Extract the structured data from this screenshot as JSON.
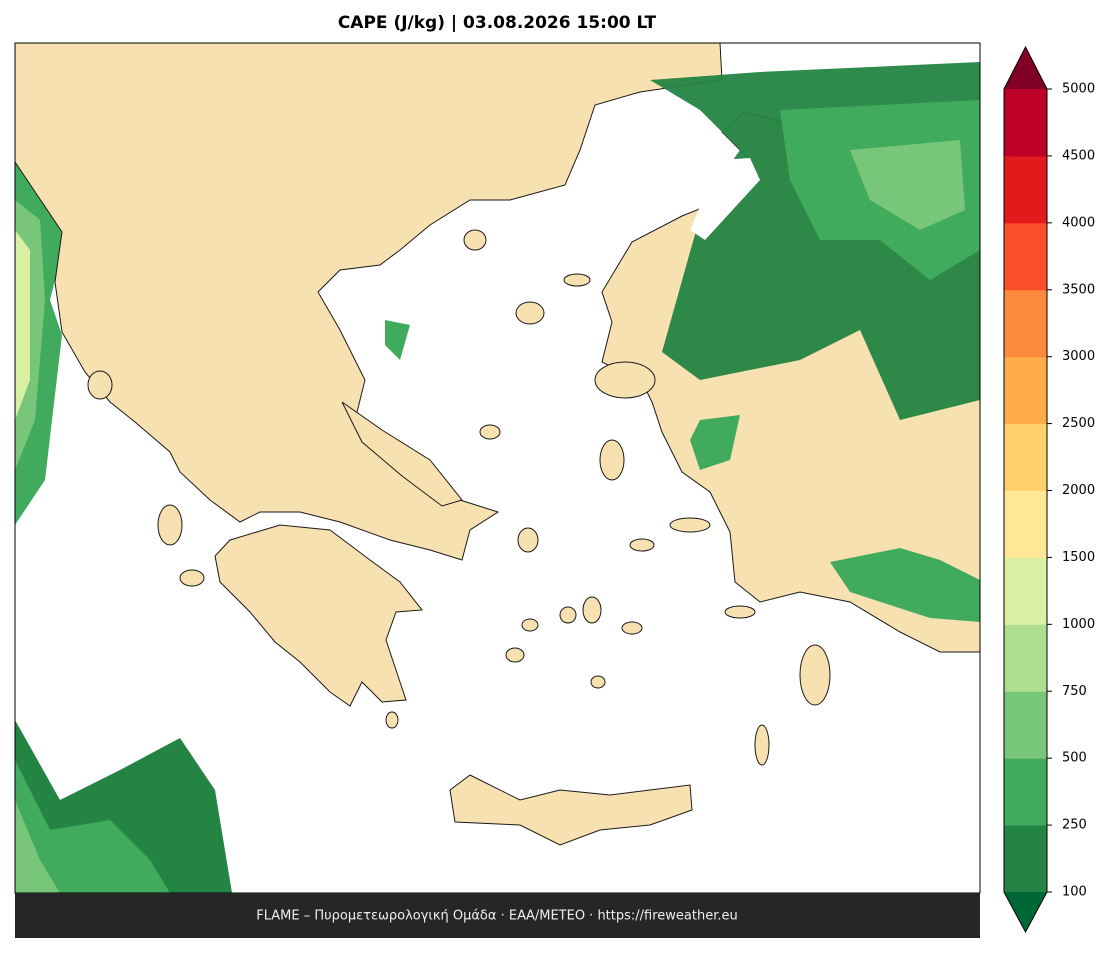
{
  "title": "CAPE (J/kg)  |  03.08.2026 15:00 LT",
  "footer": "FLAME – Πυρομετεωρολογική Ομάδα · ΕΑΑ/METEO · https://fireweather.eu",
  "colorbar": {
    "levels": [
      100,
      250,
      500,
      750,
      1000,
      1500,
      2000,
      2500,
      3000,
      3500,
      4000,
      4500,
      5000
    ],
    "colors": [
      "#238443",
      "#41ab5d",
      "#78c679",
      "#addd8e",
      "#d9f0a3",
      "#fee896",
      "#fed16b",
      "#fdac47",
      "#fd8a3c",
      "#fc4e2a",
      "#e31a1c",
      "#bd0026"
    ],
    "under_color": "#006837",
    "over_color": "#800026"
  }
}
